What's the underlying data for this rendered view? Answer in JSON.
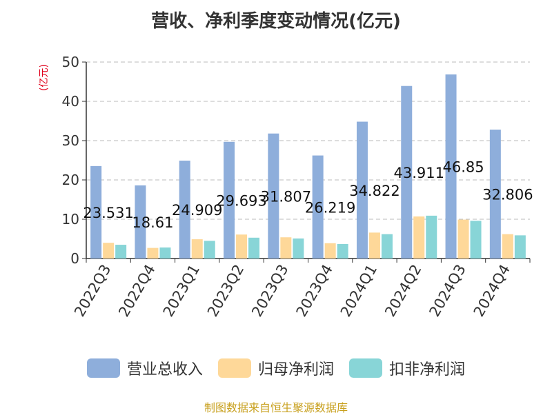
{
  "chart_data": {
    "type": "bar",
    "title": "营收、净利季度变动情况(亿元)",
    "ylabel": "(亿元)",
    "ylim": [
      0,
      50
    ],
    "yticks": [
      0,
      10,
      20,
      30,
      40,
      50
    ],
    "grid": true,
    "legend_position": "bottom",
    "categories": [
      "2022Q3",
      "2022Q4",
      "2023Q1",
      "2023Q2",
      "2023Q3",
      "2023Q4",
      "2024Q1",
      "2024Q2",
      "2024Q3",
      "2024Q4"
    ],
    "series": [
      {
        "name": "营业总收入",
        "color": "#8eaedb",
        "values": [
          23.531,
          18.61,
          24.909,
          29.693,
          31.807,
          26.219,
          34.822,
          43.911,
          46.85,
          32.806
        ],
        "labels": [
          "23.531",
          "18.61",
          "24.909",
          "29.693",
          "31.807",
          "26.219",
          "34.822",
          "43.911",
          "46.85",
          "32.806"
        ]
      },
      {
        "name": "归母净利润",
        "color": "#fed899",
        "values": [
          4.0,
          2.7,
          4.9,
          6.1,
          5.4,
          3.9,
          6.6,
          10.7,
          9.9,
          6.2
        ]
      },
      {
        "name": "扣非净利润",
        "color": "#88d5d7",
        "values": [
          3.5,
          2.8,
          4.5,
          5.3,
          5.1,
          3.7,
          6.2,
          10.9,
          9.6,
          5.9
        ]
      }
    ]
  },
  "source": "制图数据来自恒生聚源数据库"
}
